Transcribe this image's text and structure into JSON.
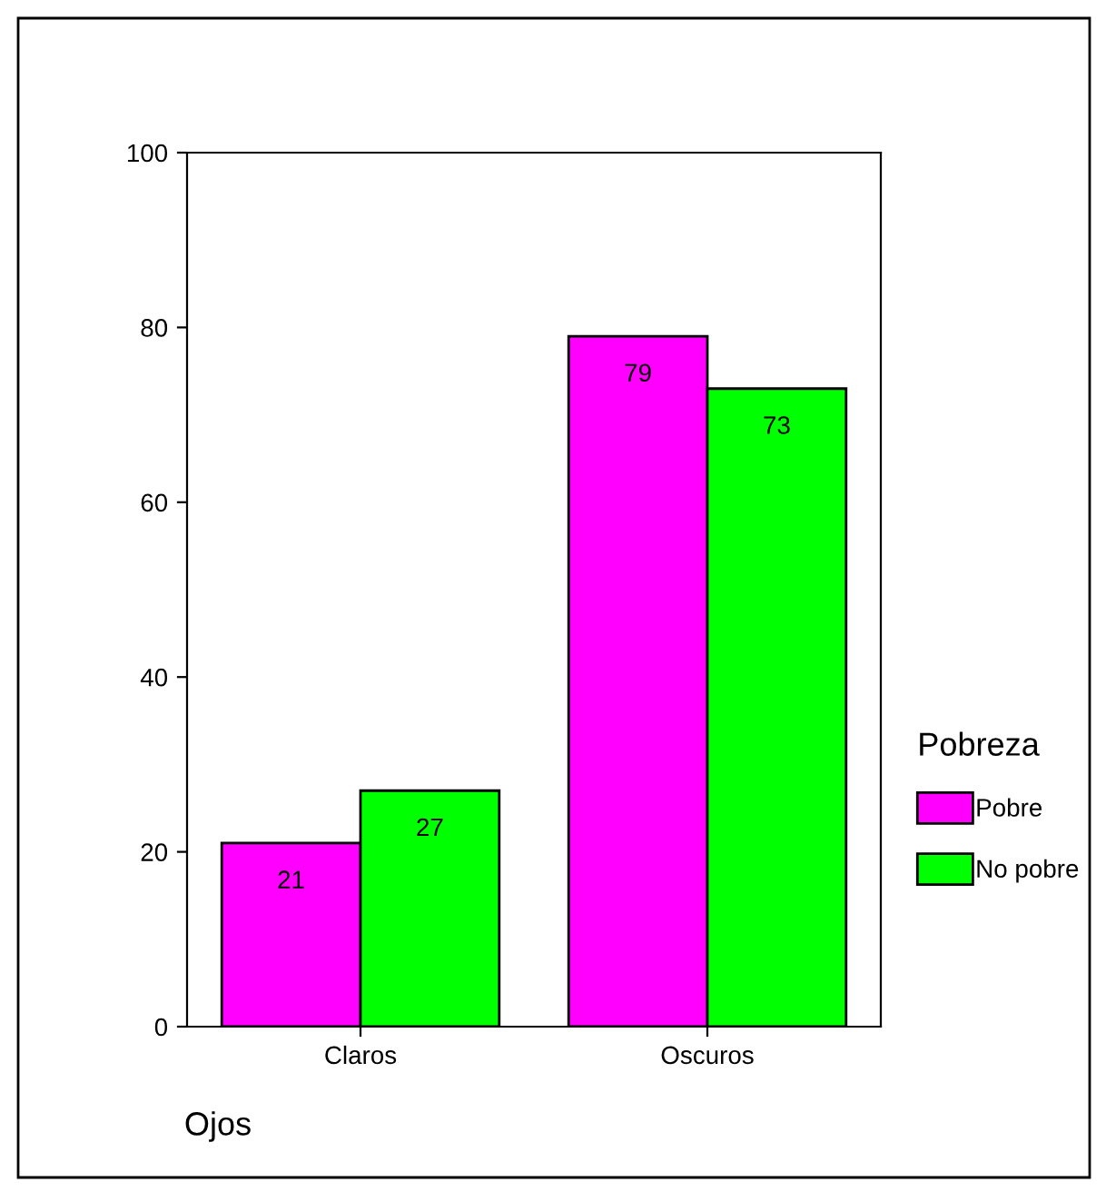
{
  "chart_data": {
    "type": "bar",
    "xlabel": "Ojos",
    "legend_title": "Pobreza",
    "categories": [
      "Claros",
      "Oscuros"
    ],
    "series": [
      {
        "name": "Pobre",
        "color": "#ff00ff",
        "values": [
          21,
          79
        ]
      },
      {
        "name": "No pobre",
        "color": "#00ff00",
        "values": [
          27,
          73
        ]
      }
    ],
    "ylim": [
      0,
      100
    ],
    "yticks": [
      0,
      20,
      40,
      60,
      80,
      100
    ],
    "data_labels": true,
    "grid": false,
    "legend": "right"
  }
}
